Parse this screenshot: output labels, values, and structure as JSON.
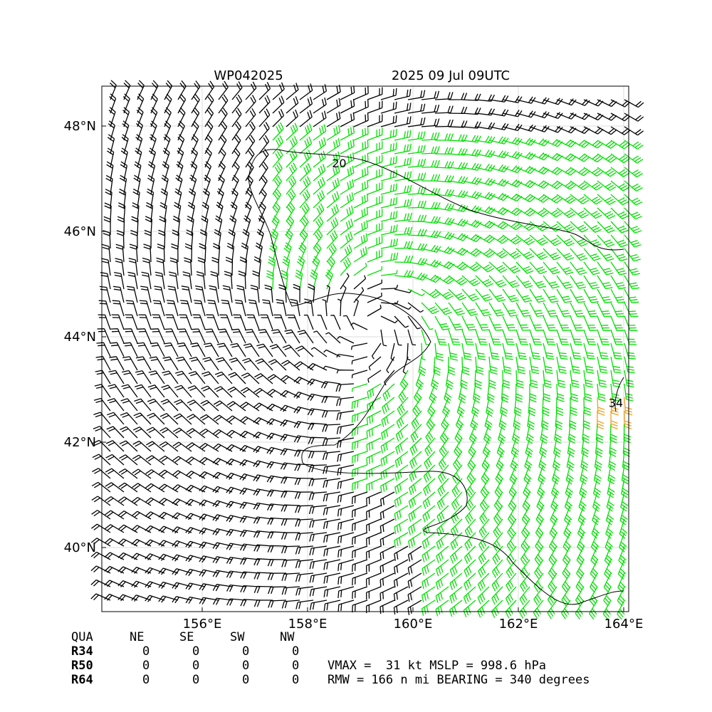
{
  "chart_data": {
    "type": "wind-barb-map",
    "title_left": "WP042025",
    "title_right": "2025 09 Jul 09UTC",
    "xlim": [
      154.095,
      164.095
    ],
    "ylim": [
      38.784,
      48.757
    ],
    "xticks": [
      {
        "value": 156,
        "label": "156°E"
      },
      {
        "value": 158,
        "label": "158°E"
      },
      {
        "value": 160,
        "label": "160°E"
      },
      {
        "value": 162,
        "label": "162°E"
      },
      {
        "value": 164,
        "label": "164°E"
      }
    ],
    "yticks": [
      {
        "value": 40,
        "label": "40°N"
      },
      {
        "value": 42,
        "label": "42°N"
      },
      {
        "value": 44,
        "label": "44°N"
      },
      {
        "value": 46,
        "label": "46°N"
      },
      {
        "value": 48,
        "label": "48°N"
      }
    ],
    "grid": true,
    "contour_labels": [
      {
        "text": "20",
        "lon": 158.6,
        "lat": 47.3
      },
      {
        "text": "34",
        "lon": 163.85,
        "lat": 42.75
      }
    ]
  },
  "table": {
    "header": [
      "QUA",
      "NE",
      "SE",
      "SW",
      "NW"
    ],
    "rows": [
      [
        "R34",
        "0",
        "0",
        "0",
        "0"
      ],
      [
        "R50",
        "0",
        "0",
        "0",
        "0"
      ],
      [
        "R64",
        "0",
        "0",
        "0",
        "0"
      ]
    ]
  },
  "info": [
    "VMAX =  31 kt MSLP = 998.6 hPa",
    "RMW = 166 n mi BEARING = 340 degrees"
  ]
}
